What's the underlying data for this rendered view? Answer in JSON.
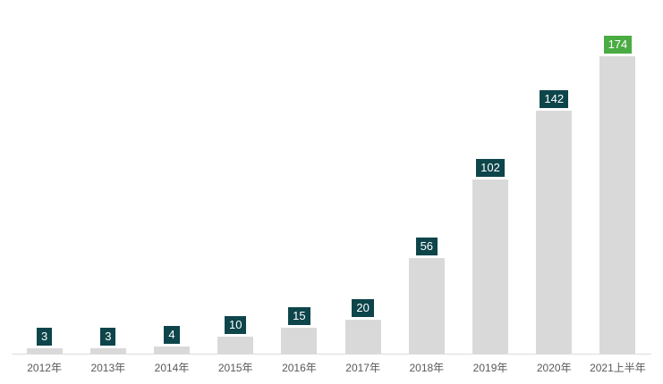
{
  "chart_data": {
    "type": "bar",
    "categories": [
      "2012年",
      "2013年",
      "2014年",
      "2015年",
      "2016年",
      "2017年",
      "2018年",
      "2019年",
      "2020年",
      "2021上半年"
    ],
    "values": [
      3,
      3,
      4,
      10,
      15,
      20,
      56,
      102,
      142,
      174
    ],
    "title": "",
    "xlabel": "",
    "ylabel": "",
    "ylim": [
      0,
      174
    ],
    "grid": false,
    "legend": "none",
    "axis_ticks_visible": false,
    "data_labels": "above-bar-badges",
    "highlight_last_bar": true,
    "colors": {
      "bar": "#d9d9d9",
      "axis_line": "#dcdcdc",
      "value_badge": "#0d454b",
      "value_badge_highlight": "#4aac42",
      "value_text": "#ffffff",
      "tick_label": "#595959"
    }
  }
}
